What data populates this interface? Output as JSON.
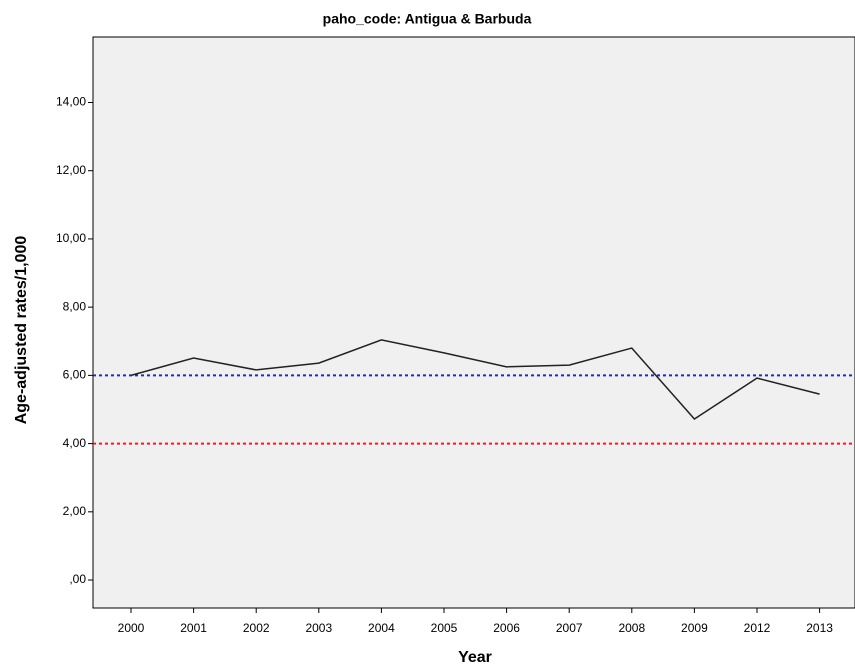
{
  "chart_data": {
    "type": "line",
    "title": "paho_code: Antigua & Barbuda",
    "x_label": "Year",
    "y_label": "Age-adjusted rates/1,000",
    "categories": [
      "2000",
      "2001",
      "2002",
      "2003",
      "2004",
      "2005",
      "2006",
      "2007",
      "2008",
      "2009",
      "2012",
      "2013"
    ],
    "series": [
      {
        "color": "#222222",
        "values": [
          6.0,
          6.51,
          6.16,
          6.36,
          7.04,
          6.66,
          6.25,
          6.3,
          6.8,
          4.72,
          5.92,
          5.45
        ]
      }
    ],
    "ylim": [
      -0.82,
      15.92
    ],
    "yticks": [
      {
        "value": 0,
        "label": ",00"
      },
      {
        "value": 2,
        "label": "2,00"
      },
      {
        "value": 4,
        "label": "4,00"
      },
      {
        "value": 6,
        "label": "6,00"
      },
      {
        "value": 8,
        "label": "8,00"
      },
      {
        "value": 10,
        "label": "10,00"
      },
      {
        "value": 12,
        "label": "12,00"
      },
      {
        "value": 14,
        "label": "14,00"
      }
    ],
    "reference_lines": [
      {
        "value": 6,
        "color": "#1f2fa8"
      },
      {
        "value": 4,
        "color": "#e0202a"
      }
    ]
  }
}
